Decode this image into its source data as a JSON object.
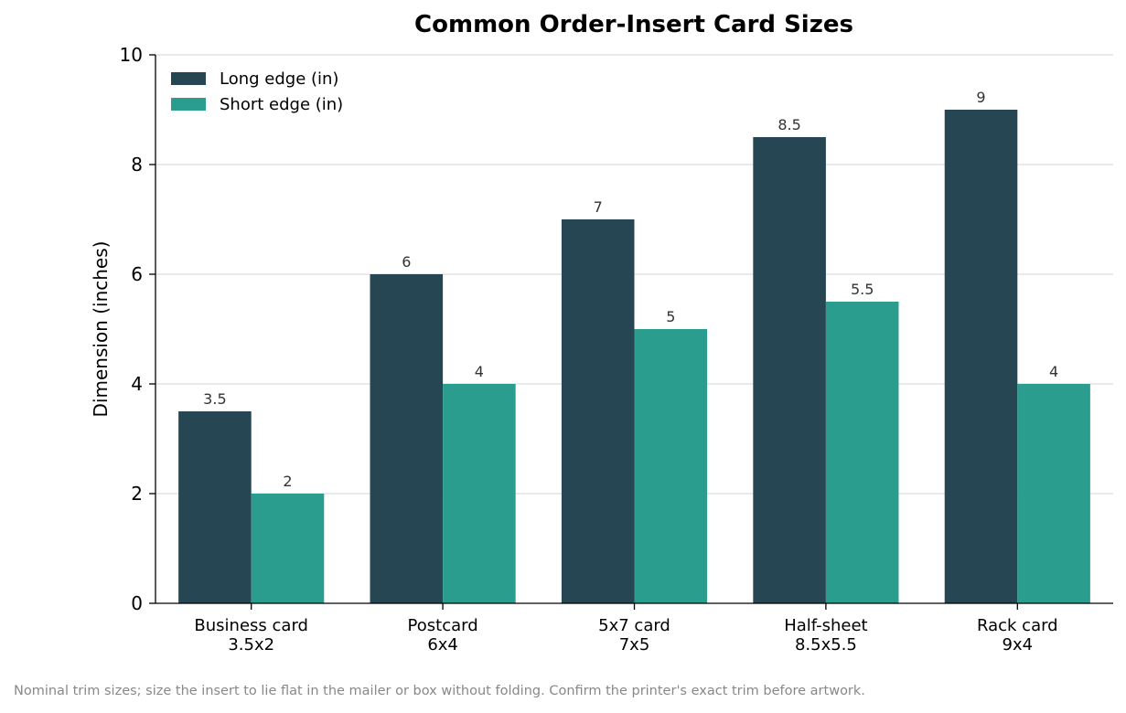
{
  "chart_data": {
    "type": "bar",
    "title": "Common Order-Insert Card Sizes",
    "xlabel": "",
    "ylabel": "Dimension (inches)",
    "ylim": [
      0,
      10
    ],
    "yticks": [
      "0",
      "2",
      "4",
      "6",
      "8",
      "10"
    ],
    "grid": "horizontal",
    "legend_position": "top-left",
    "categories": [
      [
        "Business card",
        "3.5x2"
      ],
      [
        "Postcard",
        "6x4"
      ],
      [
        "5x7 card",
        "7x5"
      ],
      [
        "Half-sheet",
        "8.5x5.5"
      ],
      [
        "Rack card",
        "9x4"
      ]
    ],
    "series": [
      {
        "name": "Long edge (in)",
        "color": "#264653",
        "values": [
          3.5,
          6,
          7,
          8.5,
          9
        ],
        "labels": [
          "3.5",
          "6",
          "7",
          "8.5",
          "9"
        ]
      },
      {
        "name": "Short edge (in)",
        "color": "#2a9d8f",
        "values": [
          2,
          4,
          5,
          5.5,
          4
        ],
        "labels": [
          "2",
          "4",
          "5",
          "5.5",
          "4"
        ]
      }
    ]
  },
  "footnote": "Nominal trim sizes; size the insert to lie flat in the mailer or box without folding. Confirm the printer's exact trim before artwork."
}
